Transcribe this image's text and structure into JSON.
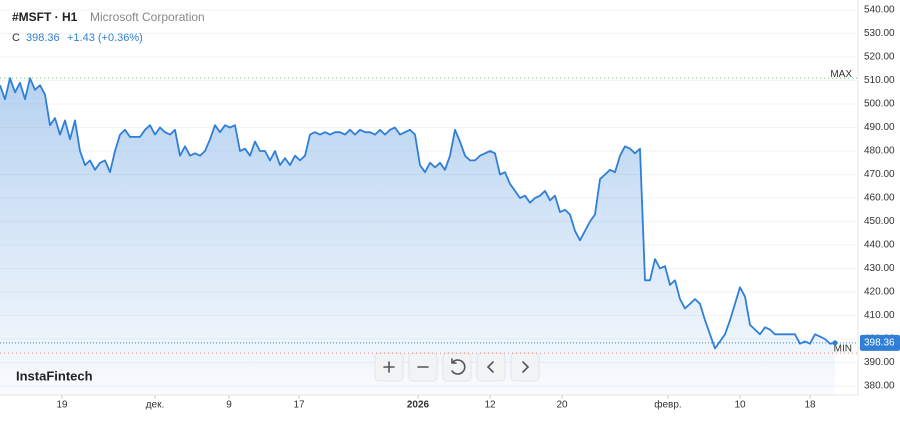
{
  "chart_data": {
    "type": "line",
    "symbol": "#MSFT · H1",
    "name": "Microsoft Corporation",
    "close_label": "C",
    "last": 398.36,
    "change": "+1.43 (+0.36%)",
    "brand": "InstaFintech",
    "color": "#2f7fd6",
    "values": [
      508,
      502,
      511,
      505,
      509,
      502,
      511,
      506,
      508,
      504,
      491,
      494,
      487,
      493,
      485,
      493,
      480,
      474,
      476,
      472,
      475,
      476,
      471,
      480,
      487,
      489,
      486,
      486,
      486,
      489,
      491,
      487,
      490,
      488,
      487,
      489,
      478,
      482,
      478,
      479,
      478,
      480,
      485,
      491,
      488,
      491,
      490,
      491,
      480,
      481,
      478,
      484,
      480,
      480,
      476,
      480,
      474,
      477,
      474,
      478,
      476,
      478,
      487,
      488,
      487,
      488,
      487,
      488,
      488,
      487,
      489,
      487,
      489,
      488,
      488,
      487,
      489,
      487,
      489,
      490,
      487,
      488,
      489,
      487,
      474,
      471,
      475,
      473,
      475,
      472,
      478,
      489,
      484,
      478,
      476,
      476,
      478,
      479,
      480,
      479,
      470,
      471,
      466,
      463,
      460,
      461,
      458,
      460,
      461,
      463,
      459,
      461,
      454,
      455,
      453,
      446,
      442,
      446,
      450,
      453,
      468,
      470,
      472,
      471,
      478,
      482,
      481,
      479,
      481,
      425,
      425,
      434,
      430,
      431,
      423,
      425,
      417,
      413,
      415,
      417,
      415,
      408,
      402,
      396,
      399,
      402,
      408,
      415,
      422,
      418,
      406,
      404,
      402,
      405,
      404,
      402,
      402,
      402,
      402,
      402,
      398,
      399,
      398,
      402,
      401,
      400,
      398,
      398.36
    ],
    "xlim": [
      0,
      167
    ],
    "xticks": [
      {
        "value": 12.4,
        "label": "19"
      },
      {
        "value": 31,
        "label": "дек."
      },
      {
        "value": 45.8,
        "label": "9"
      },
      {
        "value": 59.8,
        "label": "17"
      },
      {
        "value": 83.6,
        "label": "2026"
      },
      {
        "value": 98,
        "label": "12"
      },
      {
        "value": 112.4,
        "label": "20"
      },
      {
        "value": 133.6,
        "label": "февр."
      },
      {
        "value": 148,
        "label": "10"
      },
      {
        "value": 162,
        "label": "18"
      }
    ],
    "ylim": [
      380,
      540
    ],
    "yticks": [
      {
        "value": 380,
        "label": "380.00"
      },
      {
        "value": 390,
        "label": "390.00"
      },
      {
        "value": 400,
        "label": "400.00"
      },
      {
        "value": 410,
        "label": "410.00"
      },
      {
        "value": 420,
        "label": "420.00"
      },
      {
        "value": 430,
        "label": "430.00"
      },
      {
        "value": 440,
        "label": "440.00"
      },
      {
        "value": 450,
        "label": "450.00"
      },
      {
        "value": 460,
        "label": "460.00"
      },
      {
        "value": 470,
        "label": "470.00"
      },
      {
        "value": 480,
        "label": "480.00"
      },
      {
        "value": 490,
        "label": "490.00"
      },
      {
        "value": 500,
        "label": "500.00"
      },
      {
        "value": 510,
        "label": "510.00"
      },
      {
        "value": 520,
        "label": "520.00"
      },
      {
        "value": 530,
        "label": "530.00"
      },
      {
        "value": 540,
        "label": "540.00"
      }
    ],
    "levels": [
      {
        "label": "MAX",
        "value": 511,
        "color": "#3aa757"
      },
      {
        "label": "MIN",
        "value": 394,
        "color": "#e0524d"
      }
    ],
    "grid": true
  }
}
